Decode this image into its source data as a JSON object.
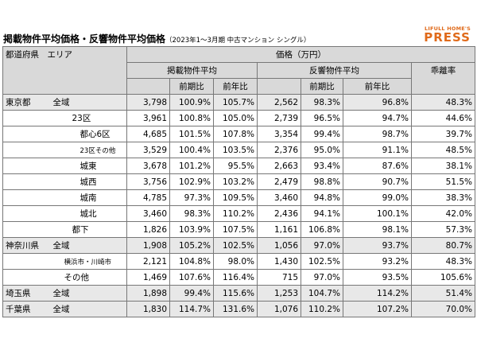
{
  "title": "掲載物件平均価格・反響物件平均価格",
  "subtitle": "（2023年1～3月期 中古マンション シングル）",
  "logo": {
    "line1": "LIFULL HOME'S",
    "line2": "PRESS"
  },
  "table": {
    "header": {
      "region": "都道府県　エリア",
      "price": "価格（万円）",
      "listing": "掲載物件平均",
      "response": "反響物件平均",
      "qoq": "前期比",
      "yoy": "前年比",
      "gap": "乖離率"
    },
    "rows": [
      {
        "pref": "東京都",
        "area": "全域",
        "lp": "3,798",
        "lq": "100.9%",
        "ly": "105.7%",
        "rp": "2,562",
        "rq": "98.3%",
        "ry": "96.8%",
        "gap": "48.3%"
      },
      {
        "pref": "",
        "area": "23区",
        "lp": "3,961",
        "lq": "100.8%",
        "ly": "105.0%",
        "rp": "2,739",
        "rq": "96.5%",
        "ry": "94.7%",
        "gap": "44.6%"
      },
      {
        "pref": "",
        "area": "都心6区",
        "lp": "4,685",
        "lq": "101.5%",
        "ly": "107.8%",
        "rp": "3,354",
        "rq": "99.4%",
        "ry": "98.7%",
        "gap": "39.7%"
      },
      {
        "pref": "",
        "area": "23区その他",
        "lp": "3,529",
        "lq": "100.4%",
        "ly": "103.5%",
        "rp": "2,376",
        "rq": "95.0%",
        "ry": "91.1%",
        "gap": "48.5%"
      },
      {
        "pref": "",
        "area": "城東",
        "lp": "3,678",
        "lq": "101.2%",
        "ly": "95.5%",
        "rp": "2,663",
        "rq": "93.4%",
        "ry": "87.6%",
        "gap": "38.1%"
      },
      {
        "pref": "",
        "area": "城西",
        "lp": "3,756",
        "lq": "102.9%",
        "ly": "103.2%",
        "rp": "2,479",
        "rq": "98.8%",
        "ry": "90.7%",
        "gap": "51.5%"
      },
      {
        "pref": "",
        "area": "城南",
        "lp": "4,785",
        "lq": "97.3%",
        "ly": "109.5%",
        "rp": "3,460",
        "rq": "94.8%",
        "ry": "99.0%",
        "gap": "38.3%"
      },
      {
        "pref": "",
        "area": "城北",
        "lp": "3,460",
        "lq": "98.3%",
        "ly": "110.2%",
        "rp": "2,436",
        "rq": "94.1%",
        "ry": "100.1%",
        "gap": "42.0%"
      },
      {
        "pref": "",
        "area": "都下",
        "lp": "1,826",
        "lq": "103.9%",
        "ly": "107.5%",
        "rp": "1,161",
        "rq": "106.8%",
        "ry": "98.1%",
        "gap": "57.3%"
      },
      {
        "pref": "神奈川県",
        "area": "全域",
        "lp": "1,908",
        "lq": "105.2%",
        "ly": "102.5%",
        "rp": "1,056",
        "rq": "97.0%",
        "ry": "93.7%",
        "gap": "80.7%"
      },
      {
        "pref": "",
        "area": "横浜市・川崎市",
        "lp": "2,121",
        "lq": "104.8%",
        "ly": "98.0%",
        "rp": "1,430",
        "rq": "102.5%",
        "ry": "93.2%",
        "gap": "48.3%"
      },
      {
        "pref": "",
        "area": "その他",
        "lp": "1,469",
        "lq": "107.6%",
        "ly": "116.4%",
        "rp": "715",
        "rq": "97.0%",
        "ry": "93.5%",
        "gap": "105.6%"
      },
      {
        "pref": "埼玉県",
        "area": "全域",
        "lp": "1,898",
        "lq": "99.4%",
        "ly": "115.6%",
        "rp": "1,253",
        "rq": "104.7%",
        "ry": "114.2%",
        "gap": "51.4%"
      },
      {
        "pref": "千葉県",
        "area": "全域",
        "lp": "1,830",
        "lq": "114.7%",
        "ly": "131.6%",
        "rp": "1,076",
        "rq": "110.2%",
        "ry": "107.2%",
        "gap": "70.0%"
      }
    ]
  }
}
